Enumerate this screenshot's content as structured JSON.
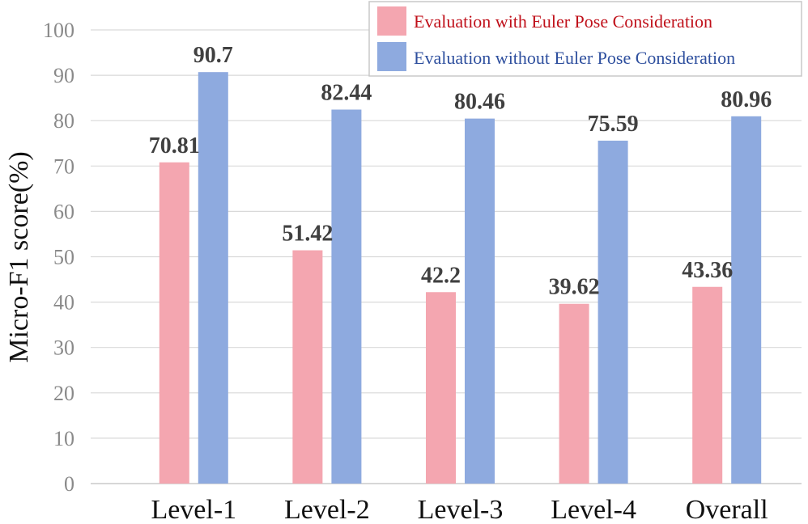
{
  "chart_data": {
    "type": "bar",
    "categories": [
      "Level-1",
      "Level-2",
      "Level-3",
      "Level-4",
      "Overall"
    ],
    "series": [
      {
        "name": "Evaluation with Euler Pose Consideration",
        "values": [
          70.81,
          51.42,
          42.2,
          39.62,
          43.36
        ],
        "labels": [
          "70.81",
          "51.42",
          "42.2",
          "39.62",
          "43.36"
        ],
        "color": "#f4a6b0",
        "legend_text_color": "#c0101a"
      },
      {
        "name": "Evaluation without Euler Pose Consideration",
        "values": [
          90.7,
          82.44,
          80.46,
          75.59,
          80.96
        ],
        "labels": [
          "90.7",
          "82.44",
          "80.46",
          "75.59",
          "80.96"
        ],
        "color": "#8eaadf",
        "legend_text_color": "#2e4f9e"
      }
    ],
    "ylabel": "Micro-F1 score(%)",
    "xlabel": "",
    "title": "",
    "ylim": [
      0,
      100
    ],
    "yticks": [
      "0",
      "10",
      "20",
      "30",
      "40",
      "50",
      "60",
      "70",
      "80",
      "90",
      "100"
    ],
    "grid": true,
    "legend_position": "top-right"
  }
}
